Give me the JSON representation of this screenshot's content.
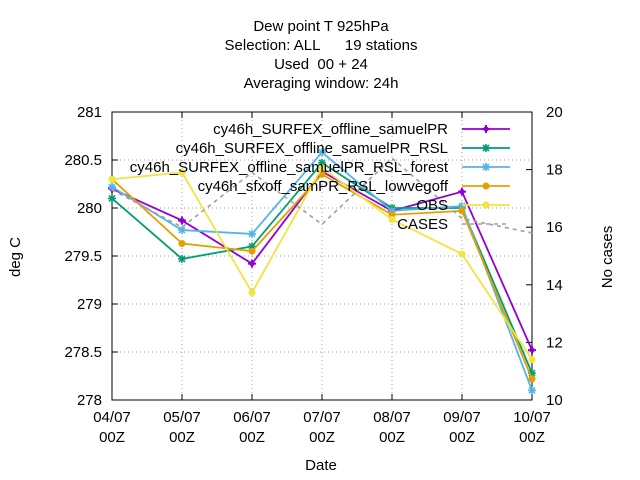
{
  "chart_data": {
    "type": "line",
    "title_lines": [
      "Dew point T 925hPa",
      "Selection: ALL      19 stations",
      "Used  00 + 24",
      "Averaging window: 24h"
    ],
    "xlabel": "Date",
    "ylabel": "deg C",
    "y2label": "No cases",
    "categories": [
      [
        "04/07",
        "00Z"
      ],
      [
        "05/07",
        "00Z"
      ],
      [
        "06/07",
        "00Z"
      ],
      [
        "07/07",
        "00Z"
      ],
      [
        "08/07",
        "00Z"
      ],
      [
        "09/07",
        "00Z"
      ],
      [
        "10/07",
        "00Z"
      ]
    ],
    "ylim": [
      278,
      281
    ],
    "yticks": [
      "278",
      "278.5",
      "279",
      "279.5",
      "280",
      "280.5",
      "281"
    ],
    "y2lim": [
      10,
      20
    ],
    "y2ticks": [
      "10",
      "12",
      "14",
      "16",
      "18",
      "20"
    ],
    "grid": true,
    "legend_position": "top-right",
    "series": [
      {
        "name": "cy46h_SURFEX_offline_samuelPR",
        "color": "#9400d3",
        "marker": "plus",
        "axis": "y",
        "values": [
          280.2,
          279.87,
          279.42,
          280.38,
          279.97,
          280.17,
          278.52
        ]
      },
      {
        "name": "cy46h_SURFEX_offline_samuelPR_RSL",
        "color": "#009e73",
        "marker": "star",
        "axis": "y",
        "values": [
          280.1,
          279.47,
          279.6,
          280.47,
          280.0,
          280.0,
          278.28
        ]
      },
      {
        "name": "cy46h_SURFEX_offline_samuelPR_RSL_forest",
        "color": "#56b4e9",
        "marker": "star",
        "axis": "y",
        "values": [
          280.22,
          279.77,
          279.73,
          280.58,
          279.97,
          280.02,
          278.1
        ]
      },
      {
        "name": "cy46h_sfxoff_samPR_RSL_lowvegoff",
        "color": "#e69f00",
        "marker": "circle",
        "axis": "y",
        "values": [
          280.3,
          279.63,
          279.55,
          280.35,
          279.93,
          279.97,
          278.22
        ]
      },
      {
        "name": "OBS",
        "color": "#f0e442",
        "marker": "circle",
        "axis": "y",
        "values": [
          280.3,
          280.37,
          279.12,
          280.42,
          279.88,
          279.52,
          278.42
        ]
      },
      {
        "name": "CASES",
        "color": "#a0a0a0",
        "marker": "none",
        "dashed": true,
        "axis": "y2",
        "values": [
          17.3,
          16.0,
          17.9,
          16.1,
          18.4,
          16.3,
          15.8
        ]
      }
    ]
  }
}
